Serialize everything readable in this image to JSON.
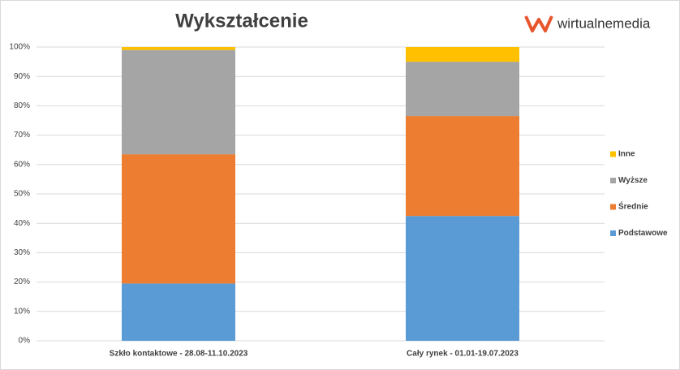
{
  "logo": "wirtualnemedia",
  "chart_data": {
    "type": "stacked-bar",
    "title": "Wykształcenie",
    "categories": [
      "Szkło kontaktowe - 28.08-11.10.2023",
      "Cały rynek - 01.01-19.07.2023"
    ],
    "series": [
      {
        "name": "Podstawowe",
        "color": "#5b9bd5",
        "values": [
          19.5,
          42.5
        ]
      },
      {
        "name": "Średnie",
        "color": "#ed7d31",
        "values": [
          44,
          34
        ]
      },
      {
        "name": "Wyższe",
        "color": "#a5a5a5",
        "values": [
          35.5,
          18.5
        ]
      },
      {
        "name": "Inne",
        "color": "#ffc000",
        "values": [
          1,
          5
        ]
      }
    ],
    "ylim": [
      0,
      100
    ],
    "yticks": [
      {
        "value": 0,
        "label": "0%"
      },
      {
        "value": 10,
        "label": "10%"
      },
      {
        "value": 20,
        "label": "20%"
      },
      {
        "value": 30,
        "label": "30%"
      },
      {
        "value": 40,
        "label": "40%"
      },
      {
        "value": 50,
        "label": "50%"
      },
      {
        "value": 60,
        "label": "60%"
      },
      {
        "value": 70,
        "label": "70%"
      },
      {
        "value": 80,
        "label": "80%"
      },
      {
        "value": 90,
        "label": "90%"
      },
      {
        "value": 100,
        "label": "100%"
      }
    ],
    "grid": true,
    "legend": "right"
  }
}
